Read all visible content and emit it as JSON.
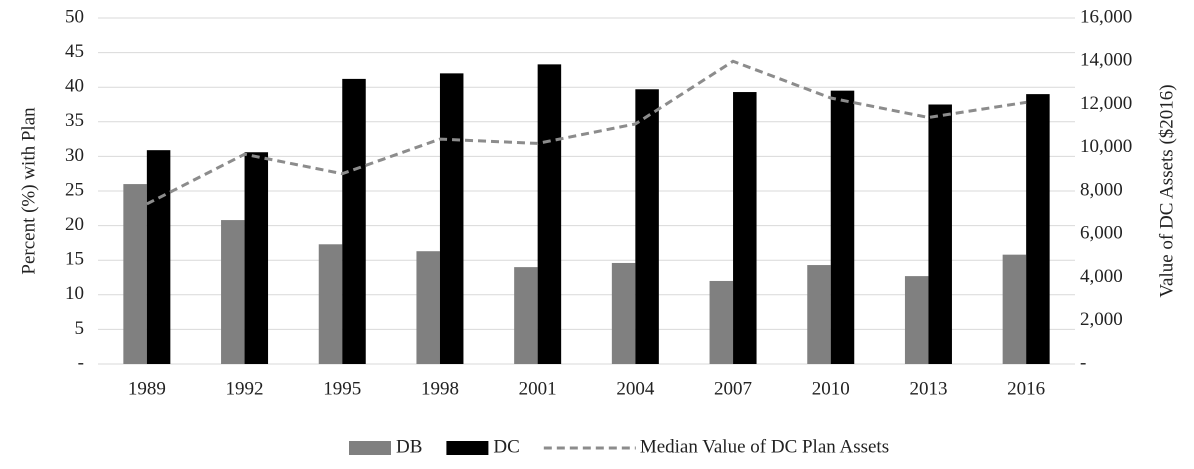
{
  "chart_data": {
    "type": "bar",
    "categories": [
      "1989",
      "1992",
      "1995",
      "1998",
      "2001",
      "2004",
      "2007",
      "2010",
      "2013",
      "2016"
    ],
    "series": [
      {
        "name": "DB",
        "color": "#808080",
        "type": "bar",
        "values": [
          26,
          20.8,
          17.3,
          16.3,
          14,
          14.6,
          12,
          14.3,
          12.7,
          15.8
        ]
      },
      {
        "name": "DC",
        "color": "#000000",
        "type": "bar",
        "values": [
          30.9,
          30.6,
          41.2,
          42,
          43.3,
          39.7,
          39.3,
          39.5,
          37.5,
          39
        ]
      },
      {
        "name": "Median Value of DC Plan Assets",
        "color": "#8c8c8c",
        "type": "line",
        "axis": "y2",
        "values": [
          7400,
          9700,
          8800,
          10400,
          10200,
          11100,
          14000,
          12300,
          11400,
          12100
        ]
      }
    ],
    "y_label": "Percent (%) with Plan",
    "y2_label": "Value of DC Assets ($2016)",
    "ylim": [
      0,
      50
    ],
    "yticks": [
      {
        "value": 0,
        "label": "-"
      },
      5,
      10,
      15,
      20,
      25,
      30,
      35,
      40,
      45,
      50
    ],
    "y2lim": [
      0,
      16000
    ],
    "y2ticks": [
      {
        "value": 0,
        "label": "-"
      },
      {
        "value": 2000,
        "label": "2,000"
      },
      {
        "value": 4000,
        "label": "4,000"
      },
      {
        "value": 6000,
        "label": "6,000"
      },
      {
        "value": 8000,
        "label": "8,000"
      },
      {
        "value": 10000,
        "label": "10,000"
      },
      {
        "value": 12000,
        "label": "12,000"
      },
      {
        "value": 14000,
        "label": "14,000"
      },
      {
        "value": 16000,
        "label": "16,000"
      }
    ],
    "grid": true,
    "legend": "bottom"
  }
}
